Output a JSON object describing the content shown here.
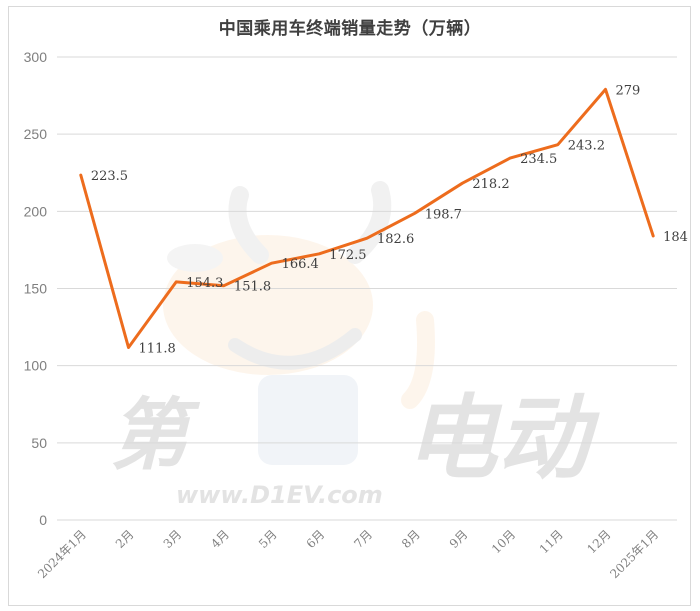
{
  "chart_data": {
    "type": "line",
    "title": "中国乘用车终端销量走势（万辆）",
    "xlabel": "",
    "ylabel": "",
    "categories": [
      "2024年1月",
      "2月",
      "3月",
      "4月",
      "5月",
      "6月",
      "7月",
      "8月",
      "9月",
      "10月",
      "11月",
      "12月",
      "2025年1月"
    ],
    "series": [
      {
        "name": "中国乘用车终端销量（万辆）",
        "values": [
          223.5,
          111.8,
          154.3,
          151.8,
          166.4,
          172.5,
          182.6,
          198.7,
          218.2,
          234.5,
          243.2,
          279,
          184
        ],
        "labels": [
          "223.5",
          "111.8",
          "154.3",
          "151.8",
          "166.4",
          "172.5",
          "182.6",
          "198.7",
          "218.2",
          "234.5",
          "243.2",
          "279",
          "184"
        ],
        "color": "#ED6C1D"
      }
    ],
    "ylim": [
      0,
      300
    ],
    "yticks": [
      0,
      50,
      100,
      150,
      200,
      250,
      300
    ],
    "ytick_labels": [
      "0",
      "50",
      "100",
      "150",
      "200",
      "250",
      "300"
    ],
    "grid": true,
    "legend": "none",
    "data_labels": true
  },
  "watermark": {
    "left_char": "第",
    "right_chars": "电动",
    "url": "www.D1EV.com"
  },
  "colors": {
    "line": "#ED6C1D",
    "grid": "#d9d9d9",
    "axis_text": "#7f7f7f",
    "label_text": "#404040"
  }
}
